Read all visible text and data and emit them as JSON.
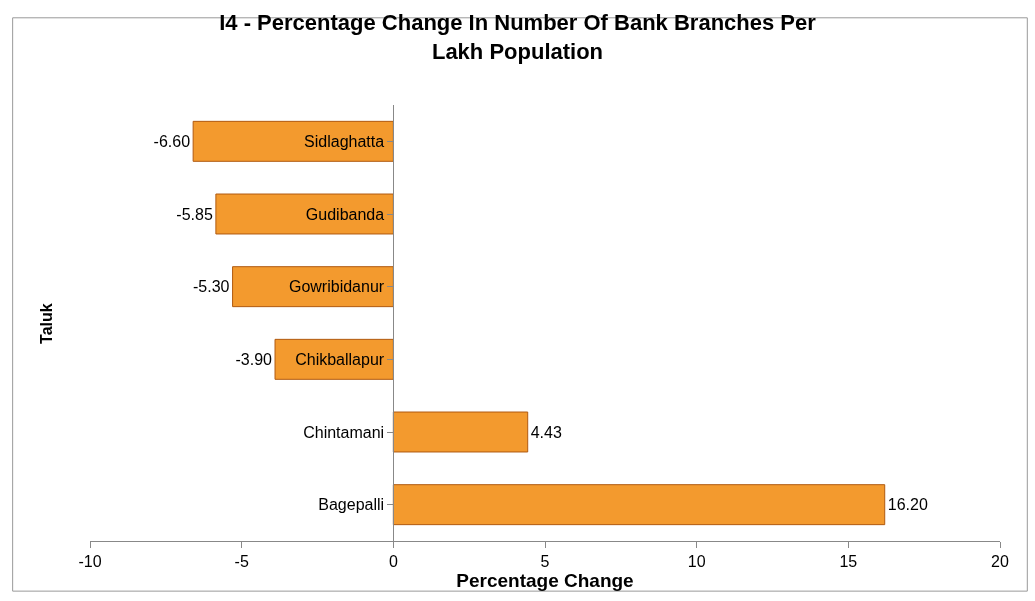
{
  "chart_data": {
    "type": "bar",
    "orientation": "horizontal",
    "title": "I4 - Percentage Change In Number Of Bank Branches Per Lakh Population",
    "xlabel": "Percentage Change",
    "ylabel": "Taluk",
    "categories": [
      "Sidlaghatta",
      "Gudibanda",
      "Gowribidanur",
      "Chikballapur",
      "Chintamani",
      "Bagepalli"
    ],
    "values": [
      -6.6,
      -5.85,
      -5.3,
      -3.9,
      4.43,
      16.2
    ],
    "value_labels": [
      "-6.60",
      "-5.85",
      "-5.30",
      "-3.90",
      "4.43",
      "16.20"
    ],
    "color": "#f39a2e",
    "xlim": [
      -10,
      20
    ],
    "xticks": [
      -10,
      -5,
      0,
      5,
      10,
      15,
      20
    ]
  }
}
